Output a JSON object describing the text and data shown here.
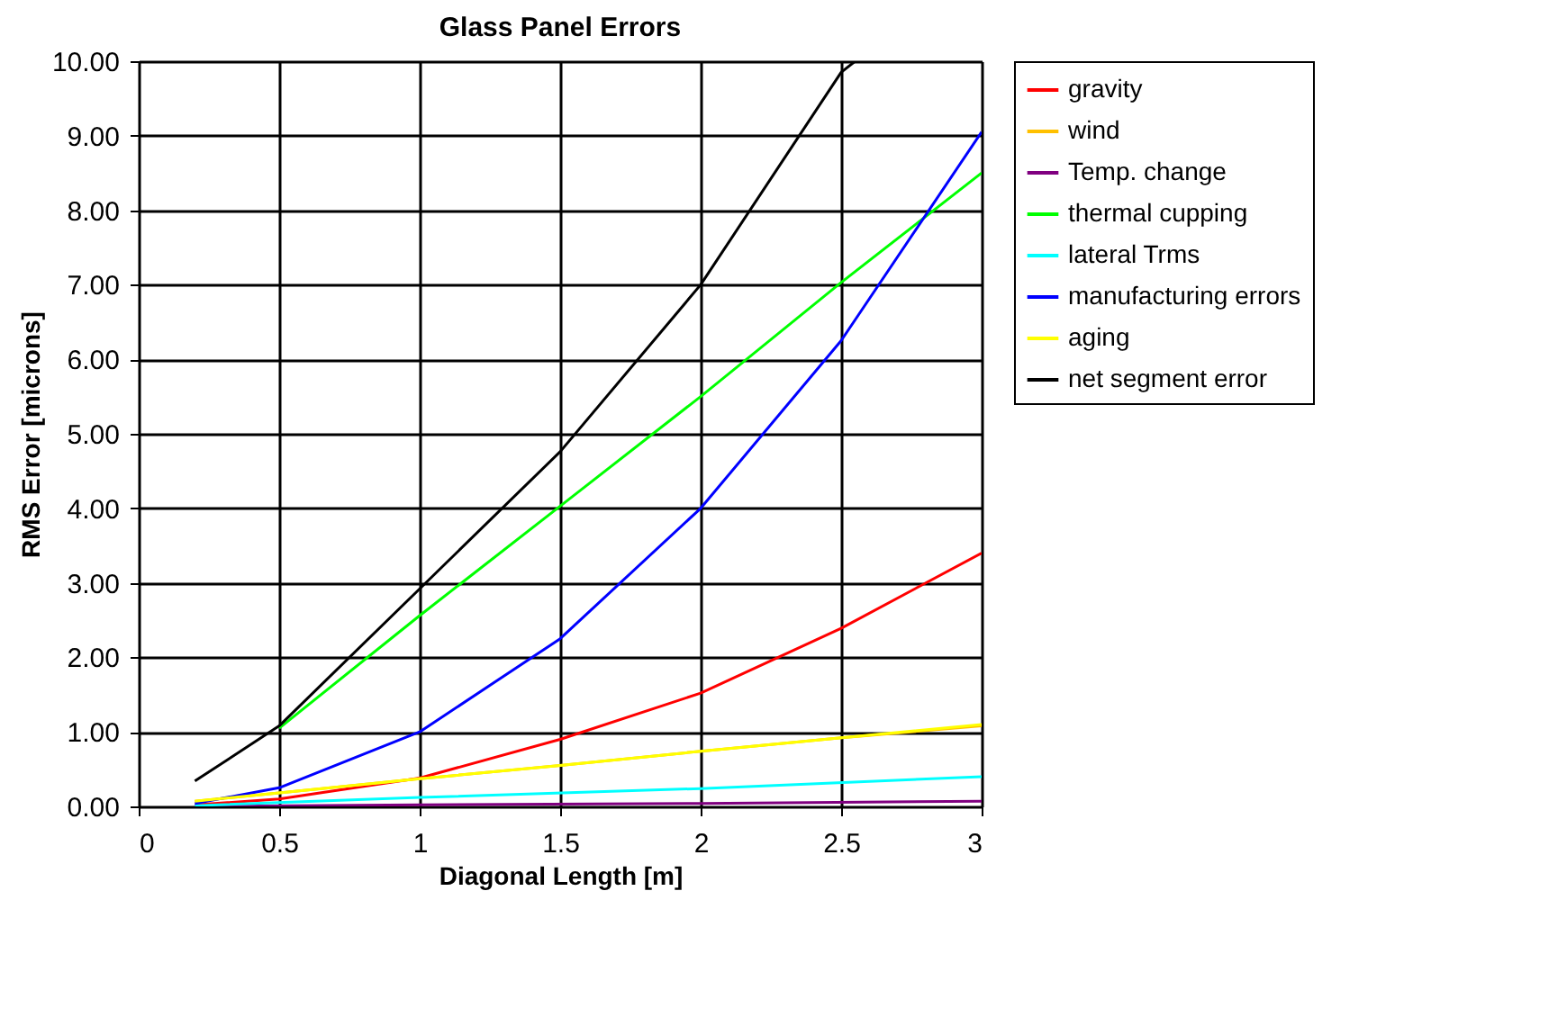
{
  "chart_data": {
    "type": "line",
    "title": "Glass Panel Errors",
    "xlabel": "Diagonal Length [m]",
    "ylabel": "RMS Error [microns]",
    "xlim": [
      0,
      3
    ],
    "xticks": [
      0,
      0.5,
      1,
      1.5,
      2,
      2.5,
      3
    ],
    "ylim": [
      0,
      10
    ],
    "yticks": [
      {
        "value": 0,
        "label": "0.00"
      },
      {
        "value": 1,
        "label": "1.00"
      },
      {
        "value": 2,
        "label": "2.00"
      },
      {
        "value": 3,
        "label": "3.00"
      },
      {
        "value": 4,
        "label": "4.00"
      },
      {
        "value": 5,
        "label": "5.00"
      },
      {
        "value": 6,
        "label": "6.00"
      },
      {
        "value": 7,
        "label": "7.00"
      },
      {
        "value": 8,
        "label": "8.00"
      },
      {
        "value": 9,
        "label": "9.00"
      },
      {
        "value": 10,
        "label": "10.00"
      }
    ],
    "grid": true,
    "legend": "right",
    "marker": "none",
    "line_style": "solid",
    "series": [
      {
        "name": "gravity",
        "color": "#ff0000",
        "x": [
          0.2,
          0.5,
          1,
          1.5,
          2,
          2.5,
          3
        ],
        "values": [
          0.02,
          0.1,
          0.38,
          0.9,
          1.52,
          2.39,
          3.4
        ]
      },
      {
        "name": "wind",
        "color": "#ffc000",
        "x": [
          0.2,
          0.5,
          1,
          1.5,
          2,
          2.5,
          3
        ],
        "values": [
          0.07,
          0.18,
          0.37,
          0.55,
          0.74,
          0.92,
          1.08
        ]
      },
      {
        "name": "Temp. change",
        "color": "#800080",
        "x": [
          0.2,
          1,
          2,
          3
        ],
        "values": [
          0.0,
          0.02,
          0.04,
          0.07
        ]
      },
      {
        "name": "thermal cupping",
        "color": "#00ff00",
        "x": [
          0.5,
          1,
          1.5,
          2,
          2.5,
          3
        ],
        "values": [
          1.05,
          2.56,
          4.03,
          5.5,
          7.03,
          8.5
        ]
      },
      {
        "name": "lateral Trms",
        "color": "#00ffff",
        "x": [
          0.2,
          1,
          2,
          3
        ],
        "values": [
          0.01,
          0.12,
          0.24,
          0.4
        ]
      },
      {
        "name": "manufacturing errors",
        "color": "#0000ff",
        "x": [
          0.2,
          0.5,
          1,
          1.5,
          2,
          2.5,
          3
        ],
        "values": [
          0.04,
          0.25,
          1.0,
          2.25,
          4.0,
          6.25,
          9.05
        ]
      },
      {
        "name": "aging",
        "color": "#ffff00",
        "x": [
          0.2,
          0.5,
          1,
          1.5,
          2,
          2.5,
          3
        ],
        "values": [
          0.07,
          0.18,
          0.37,
          0.55,
          0.74,
          0.92,
          1.1
        ]
      },
      {
        "name": "net segment error",
        "color": "#000000",
        "x": [
          0.2,
          0.5,
          1,
          1.5,
          2,
          2.5,
          2.55
        ],
        "values": [
          0.34,
          1.08,
          2.92,
          4.76,
          7.0,
          9.85,
          10.0
        ]
      }
    ]
  }
}
